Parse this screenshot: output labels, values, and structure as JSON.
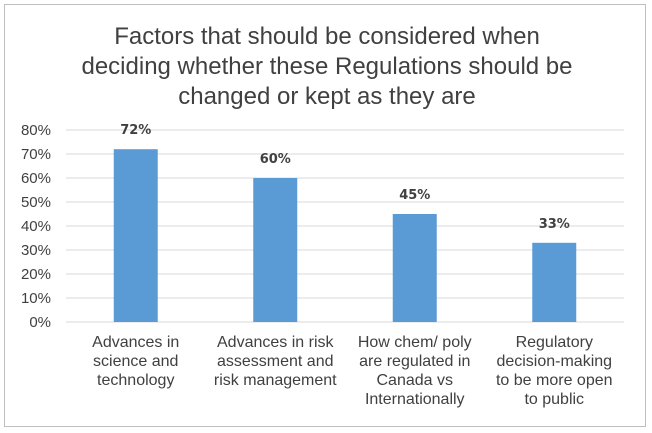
{
  "chart_data": {
    "type": "bar",
    "title_lines": [
      "Factors that should be considered when",
      "deciding whether these Regulations should be",
      "changed or kept as they are"
    ],
    "categories": [
      [
        "Advances in",
        "science and",
        "technology"
      ],
      [
        "Advances in risk",
        "assessment and",
        "risk management"
      ],
      [
        "How chem/ poly",
        "are regulated in",
        "Canada vs",
        "Internationally"
      ],
      [
        "Regulatory",
        "decision-making",
        "to be more open",
        "to public"
      ]
    ],
    "values": [
      72,
      60,
      45,
      33
    ],
    "data_labels": [
      "72%",
      "60%",
      "45%",
      "33%"
    ],
    "y_ticks": [
      "0%",
      "10%",
      "20%",
      "30%",
      "40%",
      "50%",
      "60%",
      "70%",
      "80%"
    ],
    "ylim": [
      0,
      80
    ],
    "grid": true,
    "bar_color": "#5b9bd5",
    "grid_color": "#d9d9d9"
  }
}
